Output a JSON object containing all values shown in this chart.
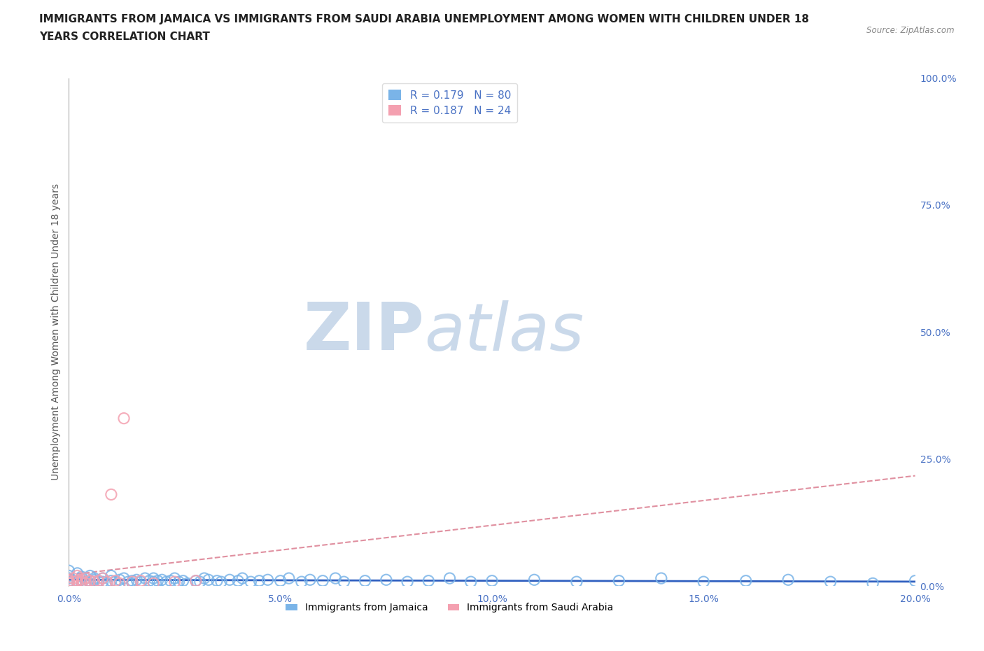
{
  "title_line1": "IMMIGRANTS FROM JAMAICA VS IMMIGRANTS FROM SAUDI ARABIA UNEMPLOYMENT AMONG WOMEN WITH CHILDREN UNDER 18",
  "title_line2": "YEARS CORRELATION CHART",
  "source": "Source: ZipAtlas.com",
  "ylabel": "Unemployment Among Women with Children Under 18 years",
  "xlim": [
    0.0,
    0.2
  ],
  "ylim": [
    0.0,
    1.0
  ],
  "xticks": [
    0.0,
    0.05,
    0.1,
    0.15,
    0.2
  ],
  "xtick_labels": [
    "0.0%",
    "5.0%",
    "10.0%",
    "15.0%",
    "20.0%"
  ],
  "yticks": [
    0.0,
    0.25,
    0.5,
    0.75,
    1.0
  ],
  "ytick_labels": [
    "0.0%",
    "25.0%",
    "50.0%",
    "75.0%",
    "100.0%"
  ],
  "jam_color": "#7ab4e8",
  "sau_color": "#f4a0b0",
  "jam_trend_color": "#3060c0",
  "sau_trend_color": "#e090a0",
  "jam_name": "Immigrants from Jamaica",
  "sau_name": "Immigrants from Saudi Arabia",
  "R_jam": 0.179,
  "N_jam": 80,
  "R_sau": 0.187,
  "N_sau": 24,
  "jam_x": [
    0.0,
    0.0,
    0.0,
    0.0,
    0.0,
    0.002,
    0.002,
    0.003,
    0.003,
    0.003,
    0.004,
    0.004,
    0.005,
    0.005,
    0.005,
    0.006,
    0.006,
    0.007,
    0.007,
    0.008,
    0.008,
    0.009,
    0.01,
    0.01,
    0.011,
    0.012,
    0.013,
    0.014,
    0.015,
    0.015,
    0.016,
    0.017,
    0.018,
    0.019,
    0.02,
    0.02,
    0.021,
    0.022,
    0.023,
    0.024,
    0.025,
    0.026,
    0.027,
    0.028,
    0.03,
    0.031,
    0.032,
    0.033,
    0.035,
    0.036,
    0.038,
    0.04,
    0.041,
    0.043,
    0.045,
    0.047,
    0.05,
    0.052,
    0.055,
    0.057,
    0.06,
    0.063,
    0.065,
    0.07,
    0.075,
    0.08,
    0.085,
    0.09,
    0.095,
    0.1,
    0.11,
    0.12,
    0.13,
    0.14,
    0.15,
    0.16,
    0.17,
    0.18,
    0.19,
    0.2
  ],
  "jam_y": [
    0.01,
    0.02,
    0.015,
    0.03,
    0.008,
    0.01,
    0.025,
    0.012,
    0.018,
    0.005,
    0.015,
    0.008,
    0.01,
    0.02,
    0.005,
    0.012,
    0.015,
    0.008,
    0.01,
    0.015,
    0.008,
    0.005,
    0.01,
    0.02,
    0.008,
    0.012,
    0.015,
    0.008,
    0.01,
    0.005,
    0.012,
    0.008,
    0.015,
    0.01,
    0.008,
    0.015,
    0.01,
    0.012,
    0.008,
    0.01,
    0.015,
    0.008,
    0.01,
    0.005,
    0.01,
    0.008,
    0.015,
    0.012,
    0.01,
    0.008,
    0.012,
    0.01,
    0.015,
    0.008,
    0.01,
    0.012,
    0.01,
    0.015,
    0.008,
    0.012,
    0.01,
    0.015,
    0.008,
    0.01,
    0.012,
    0.008,
    0.01,
    0.015,
    0.008,
    0.01,
    0.012,
    0.008,
    0.01,
    0.015,
    0.008,
    0.01,
    0.012,
    0.008,
    0.005,
    0.01
  ],
  "sau_x": [
    0.0,
    0.0,
    0.001,
    0.001,
    0.002,
    0.002,
    0.003,
    0.003,
    0.004,
    0.004,
    0.005,
    0.006,
    0.007,
    0.008,
    0.009,
    0.01,
    0.011,
    0.012,
    0.013,
    0.015,
    0.017,
    0.02,
    0.025,
    0.03
  ],
  "sau_y": [
    0.005,
    0.01,
    0.008,
    0.015,
    0.01,
    0.02,
    0.008,
    0.012,
    0.015,
    0.005,
    0.01,
    0.008,
    0.01,
    0.015,
    0.008,
    0.18,
    0.01,
    0.005,
    0.33,
    0.008,
    0.01,
    0.005,
    0.008,
    0.01
  ],
  "watermark_zip": "ZIP",
  "watermark_atlas": "atlas",
  "watermark_color_zip": "#c5d5e8",
  "watermark_color_atlas": "#c5d5e8",
  "tick_color": "#4a72c4",
  "title_color": "#222222",
  "grid_color": "#cccccc",
  "background_color": "#ffffff",
  "title_fontsize": 11,
  "tick_fontsize": 10,
  "legend_fontsize": 11,
  "axis_label_fontsize": 10
}
